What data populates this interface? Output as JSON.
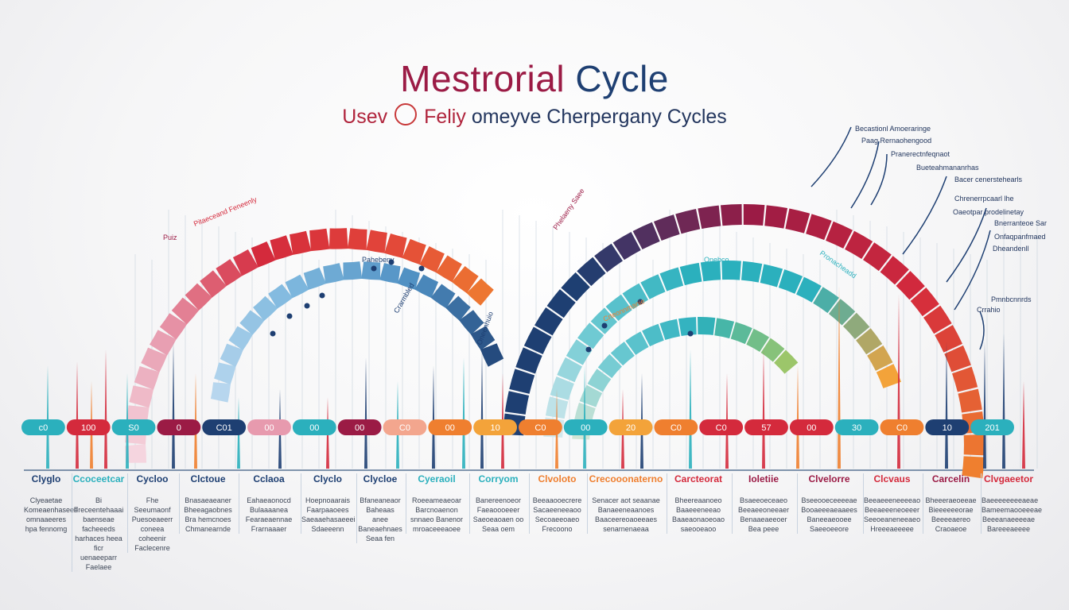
{
  "title": {
    "word1": "Mestrorial",
    "word2": "Cycle"
  },
  "subtitle": {
    "part1": "Usev",
    "part2": "Feliy",
    "part3": "omeyve Cherpergany Cycles"
  },
  "colors": {
    "red": "#d42a3c",
    "crimson": "#9b1b45",
    "navy": "#1e3f72",
    "orange": "#ef7f2f",
    "pink": "#e79aae",
    "teal": "#2bb0bd",
    "lightblue": "#7eb8de",
    "green": "#9cc66a"
  },
  "timeline_labels": [
    "c0",
    "100",
    "S0",
    "0",
    "C01",
    "00",
    "00",
    "00",
    "C0",
    "00",
    "10",
    "C0",
    "00",
    "20",
    "C0",
    "C0",
    "57",
    "00",
    "30",
    "C0",
    "10",
    "201"
  ],
  "timeline_colors": [
    "#2bb0bd",
    "#d42a3c",
    "#2bb0bd",
    "#9b1b45",
    "#1e3f72",
    "#e79aae",
    "#2bb0bd",
    "#9b1b45",
    "#f3a68e",
    "#ef7f2f",
    "#f3a33a",
    "#ef7f2f",
    "#2bb0bd",
    "#f3a33a",
    "#ef7f2f",
    "#d42a3c",
    "#d42a3c",
    "#d42a3c",
    "#2bb0bd",
    "#ef7f2f",
    "#1e3f72",
    "#2bb0bd"
  ],
  "arc_labels": {
    "left": "Pitaeceand Feneenly",
    "left_small": "Puiz",
    "mid1": "Phelaeny Saee",
    "mid2": "Pahebeny",
    "mid3": "Crarmbled",
    "right1": "Crteonnmanie",
    "right2": "Onebco",
    "right3": "Pronacheadd",
    "right4": "Oneenhuio"
  },
  "callouts": [
    "Becastionl Amoeraringe",
    "Paag Rernaohengood",
    "Pranerectnfeqnaot",
    "Bueteahmananrhas",
    "Bacer cenerstehearls",
    "Chrenerrpcaarl lhe",
    "Oaeotpar prodelinetay",
    "Bnerranteoe Sar",
    "Onfaqpanfmaed",
    "Dheandenll",
    "Pmnbcnnrds",
    "Crrahio"
  ],
  "columns": [
    {
      "h": "Clyglo",
      "color": "#1e3f72",
      "d": "Clyeaetae\nKomeaenhaseed\nomnaaeeres\nhpa fennomg"
    },
    {
      "h": "Ccoceetcar",
      "color": "#2bb0bd",
      "d": "Bi Freceentehaaai\nbaenseae facheeeds\nharhaces heea ficr\nuenaeeparr Faelaee"
    },
    {
      "h": "Cycloo",
      "color": "#1e3f72",
      "d": "Fhe Seeumaonf\nPuesoeaeerr\nconeea coheenir\nFaclecenre"
    },
    {
      "h": "Clctoue",
      "color": "#1e3f72",
      "d": "Bnasaeaeaner\nBheeagaobnes\nBra hemcnoes\nChmanearnde"
    },
    {
      "h": "Cclaoa",
      "color": "#1e3f72",
      "d": "Eahaeaonocd\nBulaaaanea\nFearaeaennae\nFrarnaaaer"
    },
    {
      "h": "Clyclo",
      "color": "#1e3f72",
      "d": "Hoepnoaarais\nFaarpaaoees\nSaeaaehasaeeei\nSdaeeenn"
    },
    {
      "h": "Clycloe",
      "color": "#1e3f72",
      "d": "Bfaneaneaor\nBaheaas anee\nBaneaehnaes\nSeaa fen"
    },
    {
      "h": "Cyeraoil",
      "color": "#2bb0bd",
      "d": "Roeeameaeoar\nBarcnoaenon\nsnnaeo Banenor\nmroaceeeaoee"
    },
    {
      "h": "Corryom",
      "color": "#2bb0bd",
      "d": "Banereenoeor\nFaeaoooeeer\nSaeoeaoaen oo\nSeaa oem"
    },
    {
      "h": "Clvoloto",
      "color": "#ef7f2f",
      "d": "Beeaaooecrere\nSacaeeneeaoo\nSecoaeeoaeo\nFrecoono"
    },
    {
      "h": "Crecooonaterno",
      "color": "#ef7f2f",
      "d": "Senacer aot seaanae\nBanaeeneaanoes\nBaaceereoaoeeaes\nsenarnenaeaa"
    },
    {
      "h": "Carcteorat",
      "color": "#d42a3c",
      "d": "Bheereaanoeo\nBaaeeeneeao\nBaaeaonaoeoao\nsaeooeaoo"
    },
    {
      "h": "Ioletiie",
      "color": "#9b1b45",
      "d": "Bsaeeoeceaeo\nBeeaeeoneeaer\nBenaaeaeeoer\nBea peee"
    },
    {
      "h": "Clvelorre",
      "color": "#9b1b45",
      "d": "Bseeooeceeeeae\nBooaeeeaeaaees\nBaneeaeooee\nSaeeoeeore"
    },
    {
      "h": "Clcvaus",
      "color": "#d42a3c",
      "d": "Beeaeeeneeeeao\nBeeaeeeneoeeer\nSeeoeaneneeaeo\nHreeeaeeeee"
    },
    {
      "h": "Carcelin",
      "color": "#9b1b45",
      "d": "Bheeeraeoeeae\nBieeeeeeorae\nBeeeeaereo\nCraoaeoe"
    },
    {
      "h": "Clvgaeetor",
      "color": "#d42a3c",
      "d": "Baeeeeeeeeaeae\nBameemaooeeeae\nBeeeanaeeeeae\nBareeeaeeee"
    }
  ]
}
